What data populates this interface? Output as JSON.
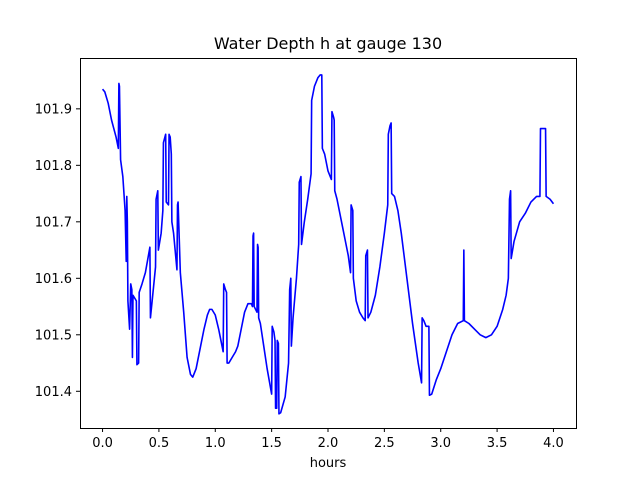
{
  "chart_data": {
    "type": "line",
    "title": "Water Depth h at gauge 130",
    "xlabel": "hours",
    "ylabel": "",
    "xlim": [
      -0.2,
      4.2
    ],
    "ylim": [
      101.335,
      101.99
    ],
    "xticks": [
      0.0,
      0.5,
      1.0,
      1.5,
      2.0,
      2.5,
      3.0,
      3.5,
      4.0
    ],
    "xtick_labels": [
      "0.0",
      "0.5",
      "1.0",
      "1.5",
      "2.0",
      "2.5",
      "3.0",
      "3.5",
      "4.0"
    ],
    "yticks": [
      101.4,
      101.5,
      101.6,
      101.7,
      101.8,
      101.9
    ],
    "ytick_labels": [
      "101.4",
      "101.5",
      "101.6",
      "101.7",
      "101.8",
      "101.9"
    ],
    "grid": false,
    "series": [
      {
        "color": "#0000ff",
        "points": [
          [
            0.0,
            101.935
          ],
          [
            0.02,
            101.93
          ],
          [
            0.05,
            101.91
          ],
          [
            0.08,
            101.88
          ],
          [
            0.12,
            101.85
          ],
          [
            0.14,
            101.83
          ],
          [
            0.145,
            101.945
          ],
          [
            0.15,
            101.94
          ],
          [
            0.16,
            101.81
          ],
          [
            0.18,
            101.78
          ],
          [
            0.2,
            101.72
          ],
          [
            0.21,
            101.63
          ],
          [
            0.215,
            101.745
          ],
          [
            0.22,
            101.7
          ],
          [
            0.225,
            101.56
          ],
          [
            0.24,
            101.51
          ],
          [
            0.25,
            101.59
          ],
          [
            0.26,
            101.58
          ],
          [
            0.265,
            101.46
          ],
          [
            0.27,
            101.57
          ],
          [
            0.3,
            101.56
          ],
          [
            0.305,
            101.447
          ],
          [
            0.32,
            101.45
          ],
          [
            0.325,
            101.575
          ],
          [
            0.35,
            101.59
          ],
          [
            0.38,
            101.61
          ],
          [
            0.42,
            101.655
          ],
          [
            0.425,
            101.53
          ],
          [
            0.44,
            101.56
          ],
          [
            0.47,
            101.62
          ],
          [
            0.475,
            101.74
          ],
          [
            0.49,
            101.755
          ],
          [
            0.495,
            101.65
          ],
          [
            0.52,
            101.68
          ],
          [
            0.535,
            101.72
          ],
          [
            0.54,
            101.84
          ],
          [
            0.56,
            101.855
          ],
          [
            0.565,
            101.735
          ],
          [
            0.585,
            101.73
          ],
          [
            0.59,
            101.855
          ],
          [
            0.6,
            101.85
          ],
          [
            0.61,
            101.82
          ],
          [
            0.615,
            101.7
          ],
          [
            0.63,
            101.68
          ],
          [
            0.66,
            101.615
          ],
          [
            0.665,
            101.73
          ],
          [
            0.67,
            101.735
          ],
          [
            0.69,
            101.61
          ],
          [
            0.72,
            101.54
          ],
          [
            0.75,
            101.46
          ],
          [
            0.78,
            101.43
          ],
          [
            0.8,
            101.425
          ],
          [
            0.83,
            101.44
          ],
          [
            0.87,
            101.48
          ],
          [
            0.9,
            101.51
          ],
          [
            0.93,
            101.535
          ],
          [
            0.95,
            101.545
          ],
          [
            0.97,
            101.545
          ],
          [
            1.0,
            101.535
          ],
          [
            1.03,
            101.51
          ],
          [
            1.05,
            101.49
          ],
          [
            1.07,
            101.47
          ],
          [
            1.075,
            101.59
          ],
          [
            1.09,
            101.58
          ],
          [
            1.1,
            101.575
          ],
          [
            1.105,
            101.45
          ],
          [
            1.12,
            101.45
          ],
          [
            1.15,
            101.46
          ],
          [
            1.18,
            101.47
          ],
          [
            1.2,
            101.48
          ],
          [
            1.23,
            101.51
          ],
          [
            1.26,
            101.54
          ],
          [
            1.29,
            101.555
          ],
          [
            1.32,
            101.555
          ],
          [
            1.33,
            101.55
          ],
          [
            1.335,
            101.675
          ],
          [
            1.34,
            101.68
          ],
          [
            1.345,
            101.55
          ],
          [
            1.37,
            101.54
          ],
          [
            1.375,
            101.66
          ],
          [
            1.38,
            101.655
          ],
          [
            1.385,
            101.53
          ],
          [
            1.4,
            101.52
          ],
          [
            1.43,
            101.48
          ],
          [
            1.46,
            101.44
          ],
          [
            1.5,
            101.395
          ],
          [
            1.505,
            101.515
          ],
          [
            1.52,
            101.505
          ],
          [
            1.53,
            101.49
          ],
          [
            1.535,
            101.37
          ],
          [
            1.545,
            101.37
          ],
          [
            1.55,
            101.49
          ],
          [
            1.56,
            101.485
          ],
          [
            1.565,
            101.36
          ],
          [
            1.58,
            101.362
          ],
          [
            1.62,
            101.39
          ],
          [
            1.65,
            101.45
          ],
          [
            1.66,
            101.58
          ],
          [
            1.67,
            101.6
          ],
          [
            1.675,
            101.48
          ],
          [
            1.69,
            101.53
          ],
          [
            1.72,
            101.6
          ],
          [
            1.74,
            101.66
          ],
          [
            1.745,
            101.77
          ],
          [
            1.76,
            101.78
          ],
          [
            1.765,
            101.66
          ],
          [
            1.79,
            101.7
          ],
          [
            1.82,
            101.74
          ],
          [
            1.85,
            101.785
          ],
          [
            1.855,
            101.915
          ],
          [
            1.88,
            101.94
          ],
          [
            1.91,
            101.955
          ],
          [
            1.93,
            101.96
          ],
          [
            1.945,
            101.96
          ],
          [
            1.95,
            101.83
          ],
          [
            1.97,
            101.82
          ],
          [
            2.0,
            101.79
          ],
          [
            2.03,
            101.775
          ],
          [
            2.035,
            101.895
          ],
          [
            2.05,
            101.885
          ],
          [
            2.055,
            101.88
          ],
          [
            2.06,
            101.755
          ],
          [
            2.08,
            101.74
          ],
          [
            2.12,
            101.7
          ],
          [
            2.15,
            101.67
          ],
          [
            2.18,
            101.64
          ],
          [
            2.2,
            101.61
          ],
          [
            2.205,
            101.73
          ],
          [
            2.22,
            101.72
          ],
          [
            2.225,
            101.6
          ],
          [
            2.25,
            101.56
          ],
          [
            2.28,
            101.54
          ],
          [
            2.31,
            101.53
          ],
          [
            2.33,
            101.525
          ],
          [
            2.335,
            101.64
          ],
          [
            2.35,
            101.65
          ],
          [
            2.355,
            101.53
          ],
          [
            2.38,
            101.54
          ],
          [
            2.42,
            101.57
          ],
          [
            2.46,
            101.62
          ],
          [
            2.5,
            101.68
          ],
          [
            2.53,
            101.73
          ],
          [
            2.535,
            101.855
          ],
          [
            2.55,
            101.87
          ],
          [
            2.56,
            101.875
          ],
          [
            2.565,
            101.75
          ],
          [
            2.59,
            101.745
          ],
          [
            2.62,
            101.72
          ],
          [
            2.65,
            101.68
          ],
          [
            2.7,
            101.6
          ],
          [
            2.75,
            101.52
          ],
          [
            2.8,
            101.45
          ],
          [
            2.83,
            101.415
          ],
          [
            2.835,
            101.53
          ],
          [
            2.85,
            101.525
          ],
          [
            2.87,
            101.515
          ],
          [
            2.895,
            101.515
          ],
          [
            2.9,
            101.393
          ],
          [
            2.92,
            101.395
          ],
          [
            2.96,
            101.42
          ],
          [
            3.0,
            101.44
          ],
          [
            3.05,
            101.47
          ],
          [
            3.1,
            101.5
          ],
          [
            3.15,
            101.52
          ],
          [
            3.2,
            101.525
          ],
          [
            3.205,
            101.65
          ],
          [
            3.21,
            101.525
          ],
          [
            3.25,
            101.52
          ],
          [
            3.3,
            101.51
          ],
          [
            3.35,
            101.5
          ],
          [
            3.4,
            101.495
          ],
          [
            3.45,
            101.5
          ],
          [
            3.5,
            101.515
          ],
          [
            3.55,
            101.545
          ],
          [
            3.58,
            101.57
          ],
          [
            3.6,
            101.6
          ],
          [
            3.61,
            101.74
          ],
          [
            3.62,
            101.755
          ],
          [
            3.625,
            101.635
          ],
          [
            3.65,
            101.665
          ],
          [
            3.7,
            101.7
          ],
          [
            3.75,
            101.715
          ],
          [
            3.8,
            101.735
          ],
          [
            3.85,
            101.745
          ],
          [
            3.88,
            101.745
          ],
          [
            3.885,
            101.865
          ],
          [
            3.93,
            101.865
          ],
          [
            3.935,
            101.745
          ],
          [
            3.97,
            101.74
          ],
          [
            4.0,
            101.732
          ]
        ]
      }
    ]
  }
}
